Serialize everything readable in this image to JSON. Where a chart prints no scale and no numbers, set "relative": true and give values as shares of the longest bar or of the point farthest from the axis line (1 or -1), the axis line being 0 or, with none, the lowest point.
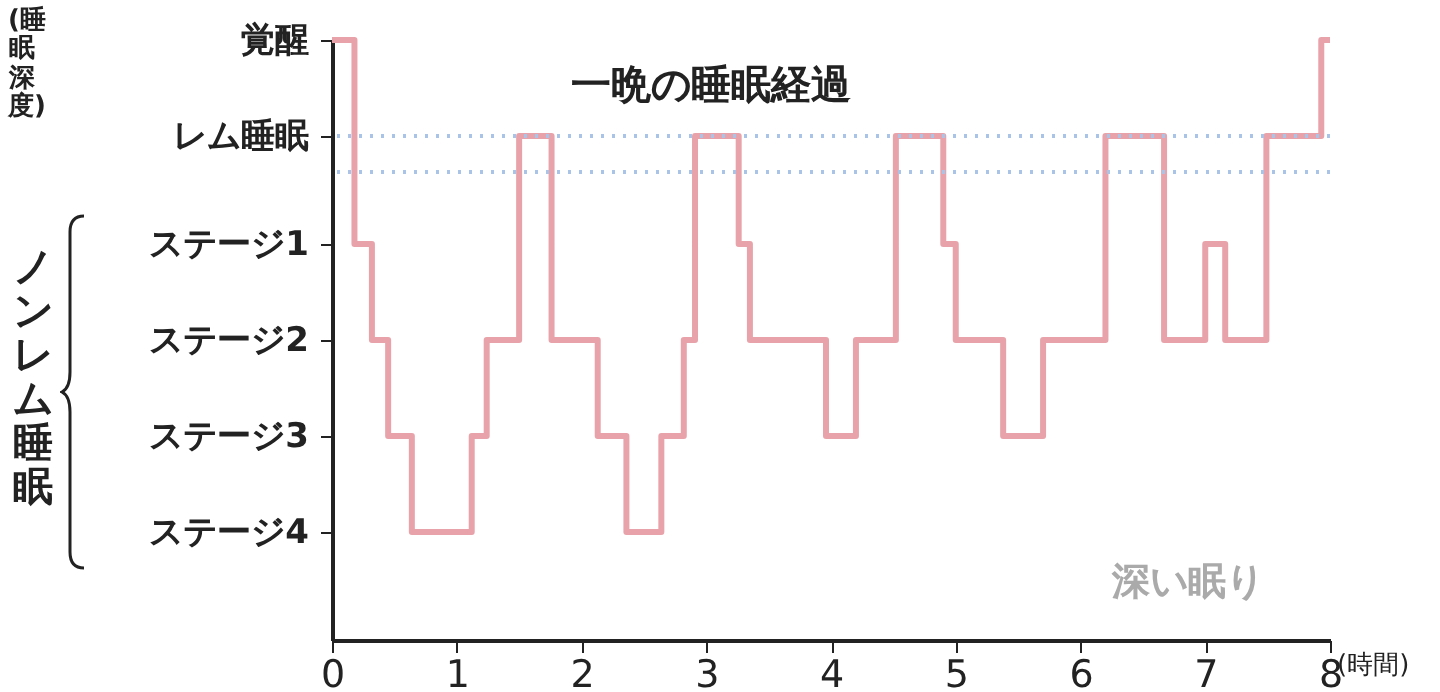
{
  "chart_data": {
    "type": "step",
    "title": "一晩の睡眠経過",
    "xlabel": "(時間)",
    "relative": true,
    "annotations": [
      "覚醒",
      "レム睡眠",
      "ステージ1",
      "ステージ2",
      "ステージ3",
      "ステージ4",
      "(睡眠深度)",
      "ノンレム睡眠",
      "深い眠り"
    ],
    "x": [
      0,
      0.18,
      0.32,
      0.45,
      0.64,
      1.12,
      1.24,
      1.5,
      1.76,
      2.13,
      2.36,
      2.64,
      2.82,
      2.91,
      3.26,
      3.35,
      3.96,
      4.2,
      4.52,
      4.9,
      5.0,
      5.38,
      5.7,
      6.2,
      6.67,
      7.0,
      7.16,
      7.49,
      7.93,
      8
    ],
    "series": [
      {
        "color": "#e8a3aa",
        "values": [
          1,
          0.66,
          0.5,
          0.34,
          0.18,
          0.34,
          0.5,
          0.84,
          0.5,
          0.34,
          0.18,
          0.34,
          0.5,
          0.84,
          0.66,
          0.5,
          0.34,
          0.5,
          0.84,
          0.66,
          0.5,
          0.34,
          0.5,
          0.84,
          0.5,
          0.66,
          0.5,
          0.84,
          1,
          1
        ]
      }
    ],
    "xlim": [
      0,
      8
    ],
    "xticks": [
      0,
      1,
      2,
      3,
      4,
      5,
      6,
      7,
      8
    ],
    "ref_lines": [
      {
        "axis": "y",
        "value": 0.84,
        "color": "#a9c4e6",
        "line_style": "dotted"
      },
      {
        "axis": "y",
        "value": 0.78,
        "color": "#a9c4e6",
        "line_style": "dotted"
      }
    ],
    "grid": false,
    "marker": "none",
    "line_style": "solid"
  }
}
